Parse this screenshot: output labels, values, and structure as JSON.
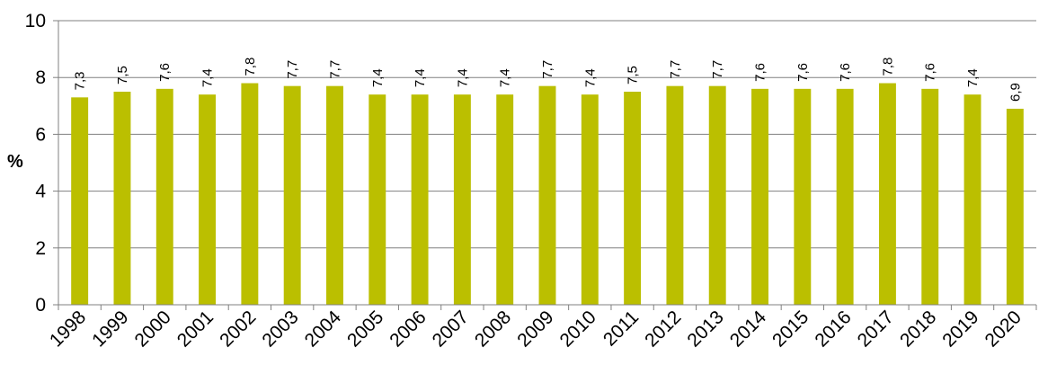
{
  "chart_data": {
    "type": "bar",
    "title": "",
    "xlabel": "",
    "ylabel": "%",
    "ylim": [
      0,
      10
    ],
    "yticks": [
      0,
      2,
      4,
      6,
      8,
      10
    ],
    "grid": true,
    "legend": "none",
    "categories": [
      "1998",
      "1999",
      "2000",
      "2001",
      "2002",
      "2003",
      "2004",
      "2005",
      "2006",
      "2007",
      "2008",
      "2009",
      "2010",
      "2011",
      "2012",
      "2013",
      "2014",
      "2015",
      "2016",
      "2017",
      "2018",
      "2019",
      "2020"
    ],
    "values": [
      7.3,
      7.5,
      7.6,
      7.4,
      7.8,
      7.7,
      7.7,
      7.4,
      7.4,
      7.4,
      7.4,
      7.7,
      7.4,
      7.5,
      7.7,
      7.7,
      7.6,
      7.6,
      7.6,
      7.8,
      7.6,
      7.4,
      6.9
    ],
    "data_labels": [
      "7,3",
      "7,5",
      "7,6",
      "7,4",
      "7,8",
      "7,7",
      "7,7",
      "7,4",
      "7,4",
      "7,4",
      "7,4",
      "7,7",
      "7,4",
      "7,5",
      "7,7",
      "7,7",
      "7,6",
      "7,6",
      "7,6",
      "7,8",
      "7,6",
      "7,4",
      "6,9"
    ]
  },
  "colors": {
    "bar": "#bbbf00",
    "grid": "#808080",
    "axis": "#808080",
    "text": "#000000"
  }
}
